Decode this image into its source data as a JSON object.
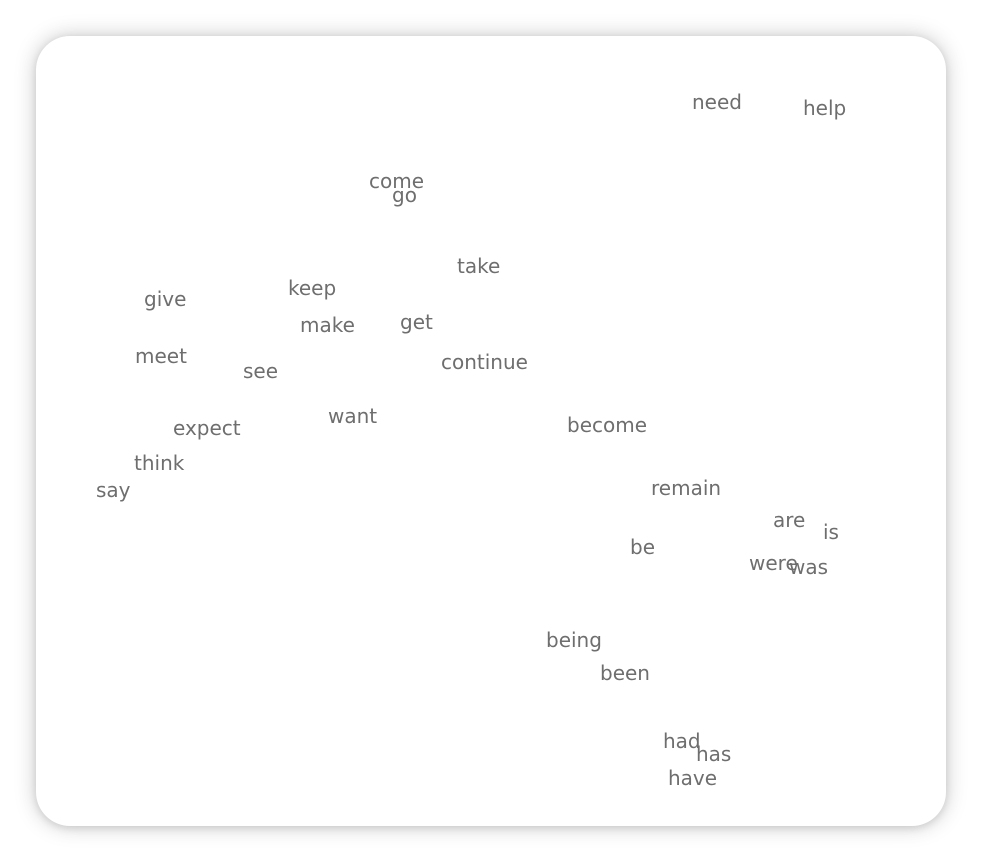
{
  "words": [
    "need",
    "help",
    "come",
    "go",
    "take",
    "keep",
    "give",
    "make",
    "get",
    "meet",
    "continue",
    "see",
    "want",
    "expect",
    "become",
    "think",
    "say",
    "remain",
    "are",
    "is",
    "be",
    "were",
    "was",
    "being",
    "been",
    "had",
    "has",
    "have"
  ]
}
